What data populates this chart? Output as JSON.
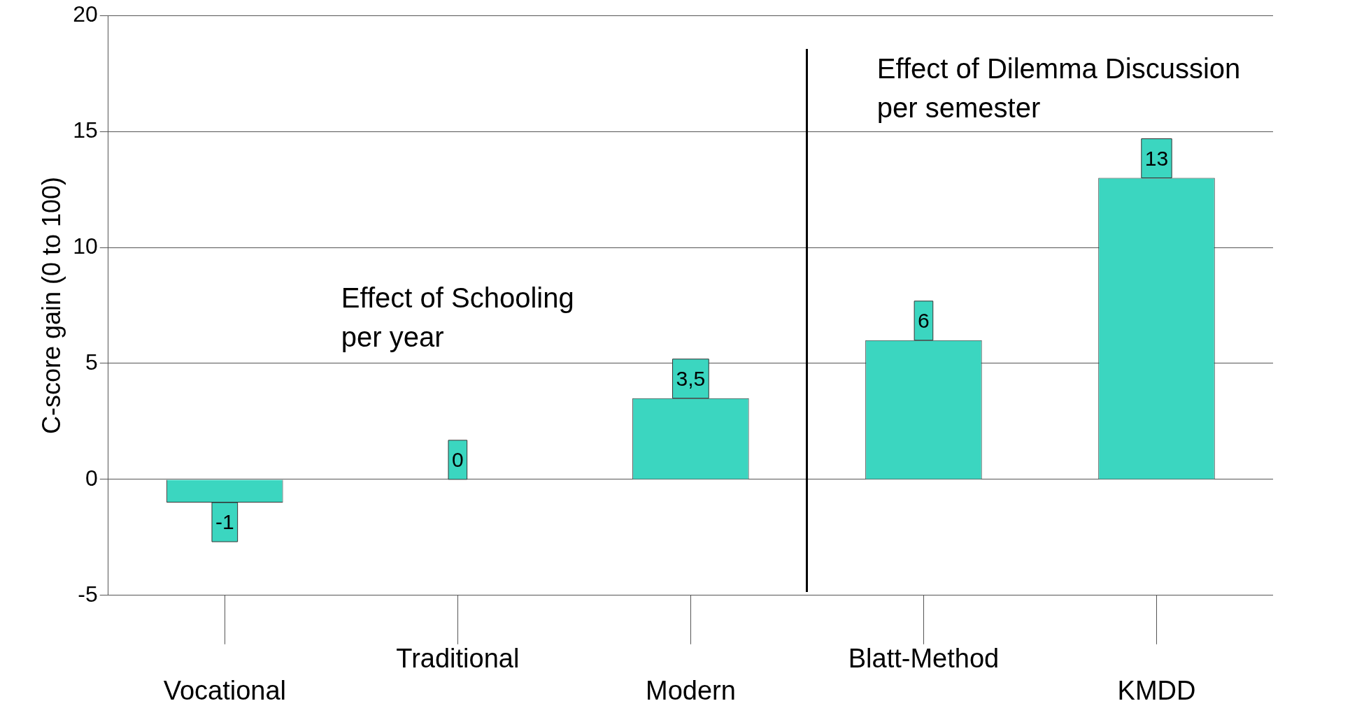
{
  "chart_data": {
    "type": "bar",
    "ylabel": "C-score gain (0 to 100)",
    "categories": [
      "Vocational",
      "Traditional",
      "Modern",
      "Blatt-Method",
      "KMDD"
    ],
    "values": [
      -1,
      0,
      3.5,
      6,
      13
    ],
    "value_labels": [
      "-1",
      "0",
      "3,5",
      "6",
      "13"
    ],
    "color": "#3bd6c0",
    "ylim": [
      -5,
      20
    ],
    "yticks": [
      -5,
      0,
      5,
      10,
      15,
      20
    ],
    "grid": "y",
    "annotations": [
      "Effect of Schooling\nper year",
      "Effect of Dilemma Discussion\nper semester"
    ]
  }
}
